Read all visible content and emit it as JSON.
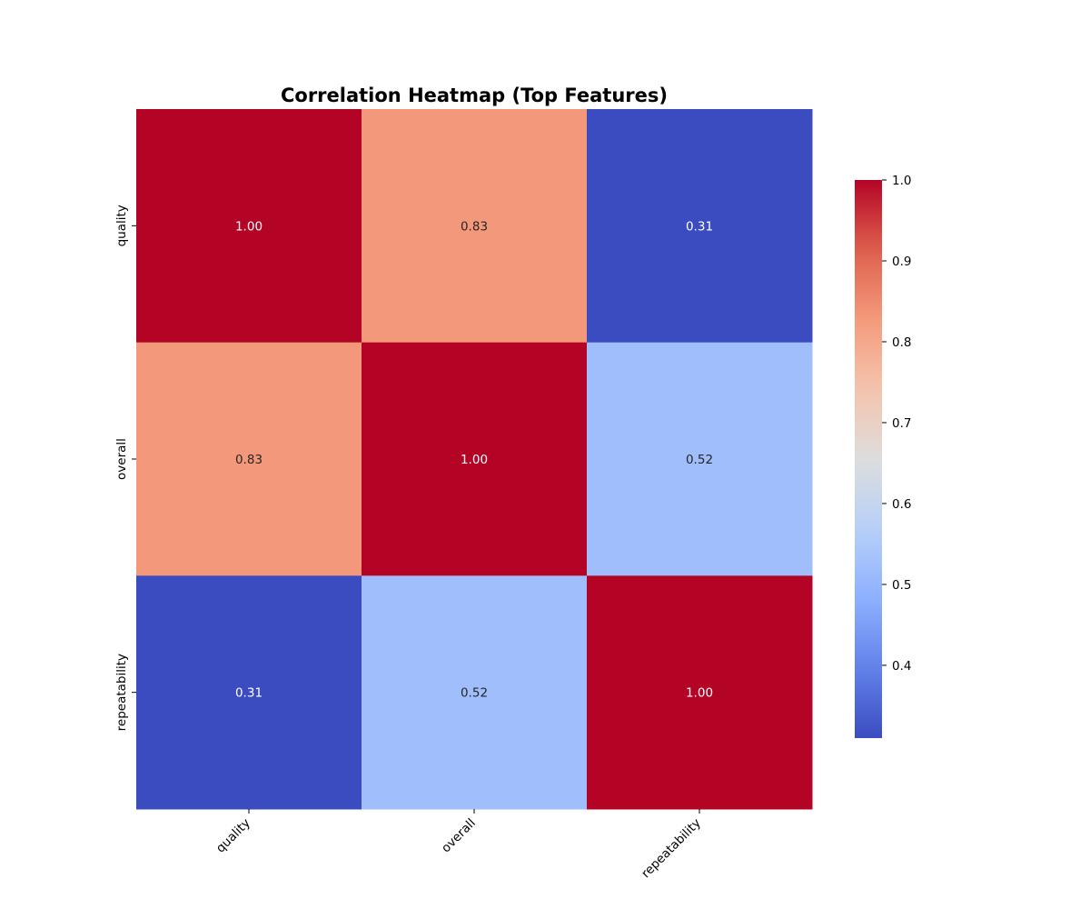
{
  "chart_data": {
    "type": "heatmap",
    "title": "Correlation Heatmap (Top Features)",
    "x_categories": [
      "quality",
      "overall",
      "repeatability"
    ],
    "y_categories": [
      "quality",
      "overall",
      "repeatability"
    ],
    "values": [
      [
        1.0,
        0.83,
        0.31
      ],
      [
        0.83,
        1.0,
        0.52
      ],
      [
        0.31,
        0.52,
        1.0
      ]
    ],
    "value_format": "0.00",
    "colormap": "coolwarm",
    "colorbar": {
      "range": [
        0.31,
        1.0
      ],
      "ticks": [
        0.4,
        0.5,
        0.6,
        0.7,
        0.8,
        0.9,
        1.0
      ],
      "placement": "right"
    },
    "colors": {
      "low": "#3b4cc0",
      "mid": "#dddddd",
      "high": "#b40426"
    }
  }
}
